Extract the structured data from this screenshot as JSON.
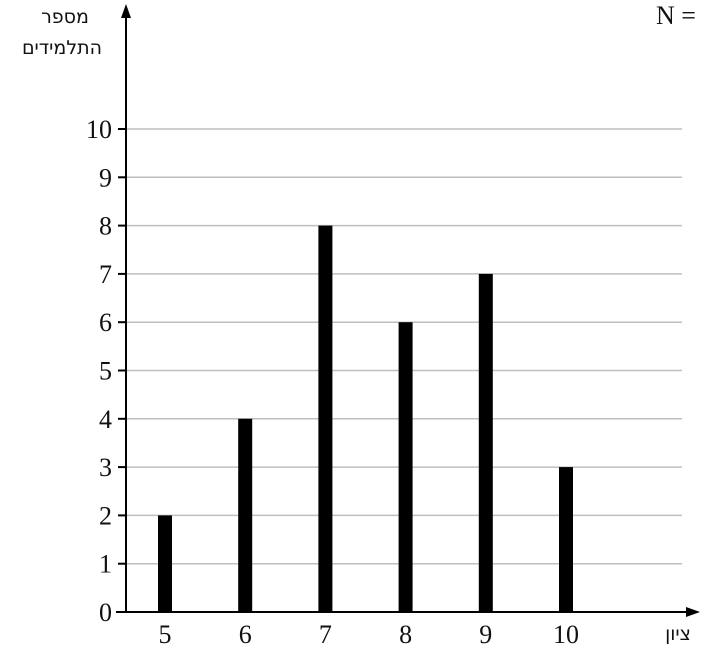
{
  "chart_data": {
    "type": "bar",
    "categories": [
      "5",
      "6",
      "7",
      "8",
      "9",
      "10"
    ],
    "values": [
      2,
      4,
      8,
      6,
      7,
      3
    ],
    "title": "",
    "xlabel": "ציון",
    "ylabel_line1": "מספר",
    "ylabel_line2": "התלמידים",
    "ylim": [
      0,
      10
    ],
    "yticks": [
      0,
      1,
      2,
      3,
      4,
      5,
      6,
      7,
      8,
      9,
      10
    ],
    "grid": true,
    "bar_color": "#000000",
    "grid_color": "#bfbfbf"
  },
  "corner_text": "N ="
}
